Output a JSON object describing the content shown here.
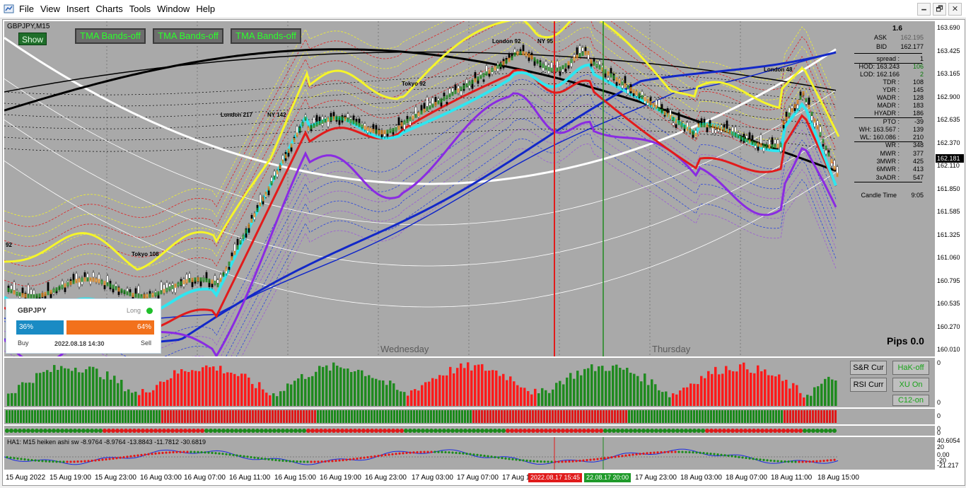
{
  "menu": {
    "items": [
      "File",
      "View",
      "Insert",
      "Charts",
      "Tools",
      "Window",
      "Help"
    ]
  },
  "window_controls": {
    "minimize": "🗕",
    "restore": "🗗",
    "close": "✕"
  },
  "chart": {
    "symbol_title": "GBPJPY,M15",
    "show_button": "Show",
    "tma_buttons": [
      "TMA Bands-off",
      "TMA Bands-off",
      "TMA Bands-off"
    ],
    "session_labels": [
      {
        "text": "London 217"
      },
      {
        "text": "NY 142"
      },
      {
        "text": "Tokyo 92"
      },
      {
        "text": "London 92"
      },
      {
        "text": "NY 95"
      },
      {
        "text": "London 48"
      },
      {
        "text": "Tokyo 108"
      },
      {
        "text": "92"
      }
    ],
    "day_labels": [
      "Wednesday",
      "Thursday"
    ],
    "pips": "Pips 0.0",
    "current_price": "162.181"
  },
  "price_scale": [
    "163.690",
    "163.425",
    "163.165",
    "162.900",
    "162.635",
    "162.370",
    "162.110",
    "161.850",
    "161.585",
    "161.325",
    "161.060",
    "160.795",
    "160.535",
    "160.270",
    "160.010"
  ],
  "info_panel": {
    "top": "1.6",
    "ask": {
      "k": "ASK",
      "v": "162.195"
    },
    "bid": {
      "k": "BID",
      "v": "162.177"
    },
    "rows": [
      {
        "k": "spread :",
        "v": "1"
      },
      {
        "k": "HOD: 163.243",
        "v": "106"
      },
      {
        "k": "LOD: 162.166",
        "v": "2"
      },
      {
        "k": "TDR :",
        "v": "108"
      },
      {
        "k": "YDR :",
        "v": "145"
      },
      {
        "k": "WADR :",
        "v": "128"
      },
      {
        "k": "MADR :",
        "v": "183"
      },
      {
        "k": "HYADR :",
        "v": "186"
      },
      {
        "k": "PTO :",
        "v": "-39"
      },
      {
        "k": "WH: 163.567 :",
        "v": "139"
      },
      {
        "k": "WL: 160.086 :",
        "v": "210"
      },
      {
        "k": "WR :",
        "v": "348"
      },
      {
        "k": "MWR :",
        "v": "377"
      },
      {
        "k": "3MWR :",
        "v": "425"
      },
      {
        "k": "6MWR :",
        "v": "413"
      },
      {
        "k": "3xADR :",
        "v": "547"
      }
    ],
    "candle_time": {
      "k": "Candle Time",
      "v": "9:05"
    }
  },
  "sentiment": {
    "symbol": "GBPJPY",
    "side": "Long",
    "buy_pct": "36%",
    "sell_pct": "64%",
    "buy": "Buy",
    "sell": "Sell",
    "date": "2022.08.18 14:30",
    "buy_fraction": 0.36
  },
  "side_buttons": [
    "S&R Cur",
    "HaK-off",
    "RSI Curr",
    "XU On",
    "C12-on"
  ],
  "sub_scales": {
    "sub1": [
      "0",
      "0"
    ],
    "sub2": [
      "0"
    ],
    "sub3": [
      "0",
      "0"
    ],
    "sub4": [
      "40.6054",
      "20",
      "0.00",
      "-20",
      "-21.217"
    ]
  },
  "ha_label": "HA1: M15 heiken ashi sw -8.9764 -8.9764 -13.8843 -11.7812 -30.6819",
  "time_axis": [
    "15 Aug 2022",
    "15 Aug 19:00",
    "15 Aug 23:00",
    "16 Aug 03:00",
    "16 Aug 07:00",
    "16 Aug 11:00",
    "16 Aug 15:00",
    "16 Aug 19:00",
    "16 Aug 23:00",
    "17 Aug 03:00",
    "17 Aug 07:00",
    "17 Aug 1",
    "17 Aug 23:00",
    "18 Aug 03:00",
    "18 Aug 07:00",
    "18 Aug 11:00",
    "18 Aug 15:00"
  ],
  "vline_tags": [
    "2022.08.17 15:45",
    "22.08.17 20:00"
  ],
  "colors": {
    "bg": "#a9a9a9",
    "red": "#e21b1b",
    "green": "#1f8a1f",
    "cyan": "#2fe6f0",
    "yellow": "#f5f52a",
    "blue": "#1228c8",
    "purple": "#8a2be2",
    "white": "#ffffff",
    "black": "#000000"
  }
}
